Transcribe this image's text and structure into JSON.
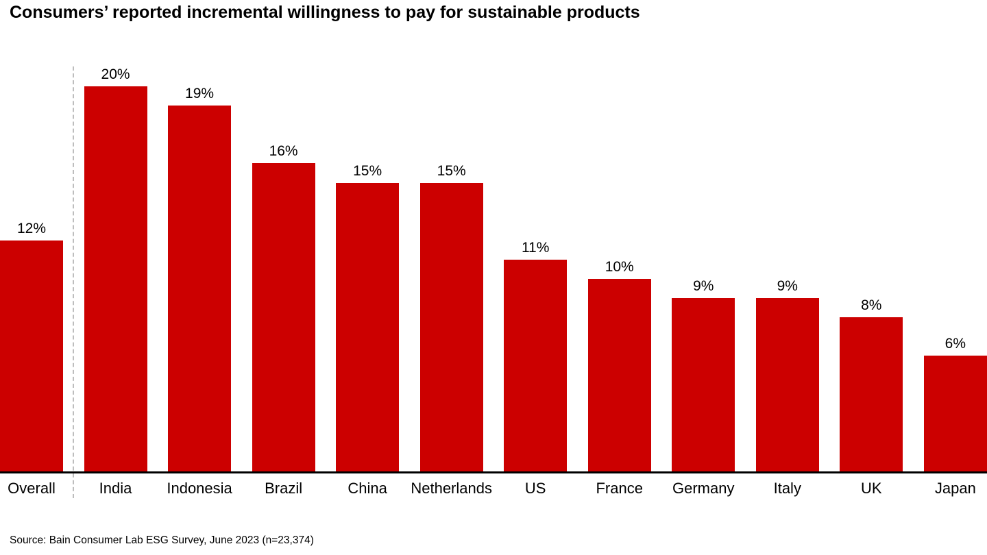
{
  "title": "Consumers’ reported incremental willingness to pay for sustainable products",
  "source": "Source: Bain Consumer Lab ESG Survey, June 2023 (n=23,374)",
  "colors": {
    "bar": "#cc0000",
    "axis": "#000000",
    "separator": "#bdbdbd"
  },
  "chart_data": {
    "type": "bar",
    "title": "Consumers’ reported incremental willingness to pay for sustainable products",
    "categories": [
      "Overall",
      "India",
      "Indonesia",
      "Brazil",
      "China",
      "Netherlands",
      "US",
      "France",
      "Germany",
      "Italy",
      "UK",
      "Japan"
    ],
    "values": [
      12,
      20,
      19,
      16,
      15,
      15,
      11,
      10,
      9,
      9,
      8,
      6
    ],
    "value_labels": [
      "12%",
      "20%",
      "19%",
      "16%",
      "15%",
      "15%",
      "11%",
      "10%",
      "9%",
      "9%",
      "8%",
      "6%"
    ],
    "xlabel": "",
    "ylabel": "",
    "ylim": [
      0,
      21
    ],
    "unit": "percent",
    "grid": false,
    "legend": "none",
    "annotations": [
      "vertical dashed separator line between Overall bar and country bars"
    ]
  }
}
